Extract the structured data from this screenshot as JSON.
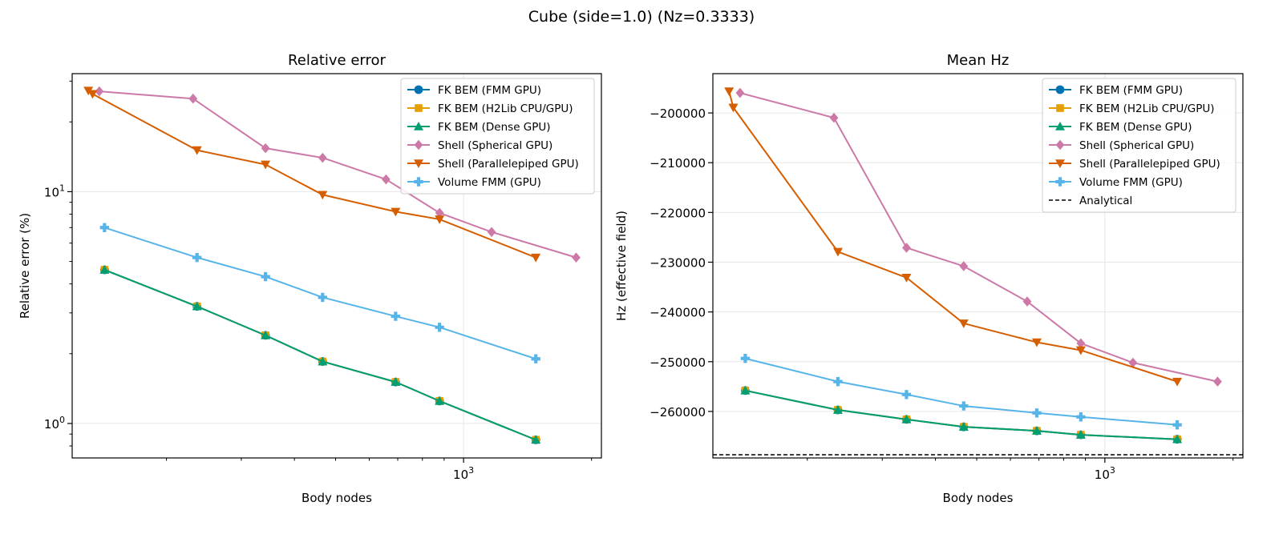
{
  "suptitle": "Cube (side=1.0)  (Nz=0.3333)",
  "colors": {
    "FK BEM (FMM GPU)": "#0072B2",
    "FK BEM (H2Lib CPU/GPU)": "#E69F00",
    "FK BEM (Dense GPU)": "#009E73",
    "Shell (Spherical GPU)": "#CC79A7",
    "Shell (Parallelepiped GPU)": "#D55E00",
    "Volume FMM (GPU)": "#56B4E9",
    "Analytical": "#000000"
  },
  "chart_data": [
    {
      "type": "line",
      "title": "Relative error",
      "xlabel": "Body nodes",
      "ylabel": "Relative error (%)",
      "xscale": "log",
      "yscale": "log",
      "xlim": [
        120,
        2110
      ],
      "ylim": [
        0.71,
        32.3
      ],
      "xticks": [
        {
          "value": 1000,
          "base": "10",
          "exp": "3"
        }
      ],
      "yticks": [
        {
          "value": 1,
          "base": "10",
          "exp": "0"
        },
        {
          "value": 10,
          "base": "10",
          "exp": "1"
        }
      ],
      "grid": true,
      "legend": "upper right",
      "series": [
        {
          "name": "FK BEM (FMM GPU)",
          "marker": "circle",
          "x": [
            143,
            236,
            342,
            466,
            692,
            878,
            1479
          ],
          "y": [
            4.6,
            3.2,
            2.4,
            1.85,
            1.51,
            1.25,
            0.85
          ]
        },
        {
          "name": "FK BEM (H2Lib CPU/GPU)",
          "marker": "square",
          "x": [
            143,
            236,
            342,
            466,
            692,
            878,
            1479
          ],
          "y": [
            4.6,
            3.2,
            2.4,
            1.85,
            1.51,
            1.25,
            0.85
          ]
        },
        {
          "name": "FK BEM (Dense GPU)",
          "marker": "triangle-up",
          "x": [
            143,
            236,
            342,
            466,
            692,
            878,
            1479
          ],
          "y": [
            4.6,
            3.2,
            2.4,
            1.85,
            1.51,
            1.25,
            0.85
          ]
        },
        {
          "name": "Shell (Spherical GPU)",
          "marker": "diamond",
          "x": [
            139,
            231,
            342,
            466,
            657,
            878,
            1164,
            1840
          ],
          "y": [
            27.1,
            25.2,
            15.4,
            14.0,
            11.3,
            8.1,
            6.7,
            5.2
          ]
        },
        {
          "name": "Shell (Parallelepiped GPU)",
          "marker": "triangle-down",
          "x": [
            131,
            134,
            236,
            342,
            466,
            692,
            878,
            1479
          ],
          "y": [
            27.3,
            26.4,
            15.1,
            13.1,
            9.7,
            8.2,
            7.6,
            5.2
          ]
        },
        {
          "name": "Volume FMM (GPU)",
          "marker": "plus",
          "x": [
            143,
            236,
            342,
            466,
            692,
            878,
            1479
          ],
          "y": [
            7.0,
            5.2,
            4.3,
            3.5,
            2.9,
            2.6,
            1.9
          ]
        }
      ]
    },
    {
      "type": "line",
      "title": "Mean Hz",
      "xlabel": "Body nodes",
      "ylabel": "Hz (effective field)",
      "xscale": "log",
      "yscale": "linear",
      "xlim": [
        120,
        2110
      ],
      "ylim": [
        -269350,
        -192100
      ],
      "xticks": [
        {
          "value": 1000,
          "base": "10",
          "exp": "3"
        }
      ],
      "yticks": [
        {
          "value": -200000,
          "label": "−200000"
        },
        {
          "value": -210000,
          "label": "−210000"
        },
        {
          "value": -220000,
          "label": "−220000"
        },
        {
          "value": -230000,
          "label": "−230000"
        },
        {
          "value": -240000,
          "label": "−240000"
        },
        {
          "value": -250000,
          "label": "−250000"
        },
        {
          "value": -260000,
          "label": "−260000"
        }
      ],
      "grid": true,
      "legend": "upper right",
      "series": [
        {
          "name": "FK BEM (FMM GPU)",
          "marker": "circle",
          "x": [
            143,
            236,
            342,
            466,
            692,
            878,
            1479
          ],
          "y": [
            -255800,
            -259700,
            -261600,
            -263100,
            -263900,
            -264700,
            -265600
          ]
        },
        {
          "name": "FK BEM (H2Lib CPU/GPU)",
          "marker": "square",
          "x": [
            143,
            236,
            342,
            466,
            692,
            878,
            1479
          ],
          "y": [
            -255800,
            -259700,
            -261600,
            -263100,
            -263900,
            -264700,
            -265600
          ]
        },
        {
          "name": "FK BEM (Dense GPU)",
          "marker": "triangle-up",
          "x": [
            143,
            236,
            342,
            466,
            692,
            878,
            1479
          ],
          "y": [
            -255800,
            -259700,
            -261600,
            -263100,
            -263900,
            -264700,
            -265600
          ]
        },
        {
          "name": "Shell (Spherical GPU)",
          "marker": "diamond",
          "x": [
            139,
            231,
            342,
            466,
            657,
            878,
            1164,
            1840
          ],
          "y": [
            -195970,
            -200970,
            -227100,
            -230800,
            -237900,
            -246300,
            -250200,
            -254000
          ]
        },
        {
          "name": "Shell (Parallelepiped GPU)",
          "marker": "triangle-down",
          "x": [
            131,
            134,
            236,
            342,
            466,
            692,
            878,
            1479
          ],
          "y": [
            -195650,
            -198900,
            -227900,
            -233100,
            -242300,
            -246100,
            -247700,
            -254000
          ]
        },
        {
          "name": "Volume FMM (GPU)",
          "marker": "plus",
          "x": [
            143,
            236,
            342,
            466,
            692,
            878,
            1479
          ],
          "y": [
            -249350,
            -254000,
            -256600,
            -258900,
            -260300,
            -261100,
            -262700
          ]
        }
      ],
      "hlines": [
        {
          "name": "Analytical",
          "y": -268700,
          "style": "dashed"
        }
      ]
    }
  ]
}
